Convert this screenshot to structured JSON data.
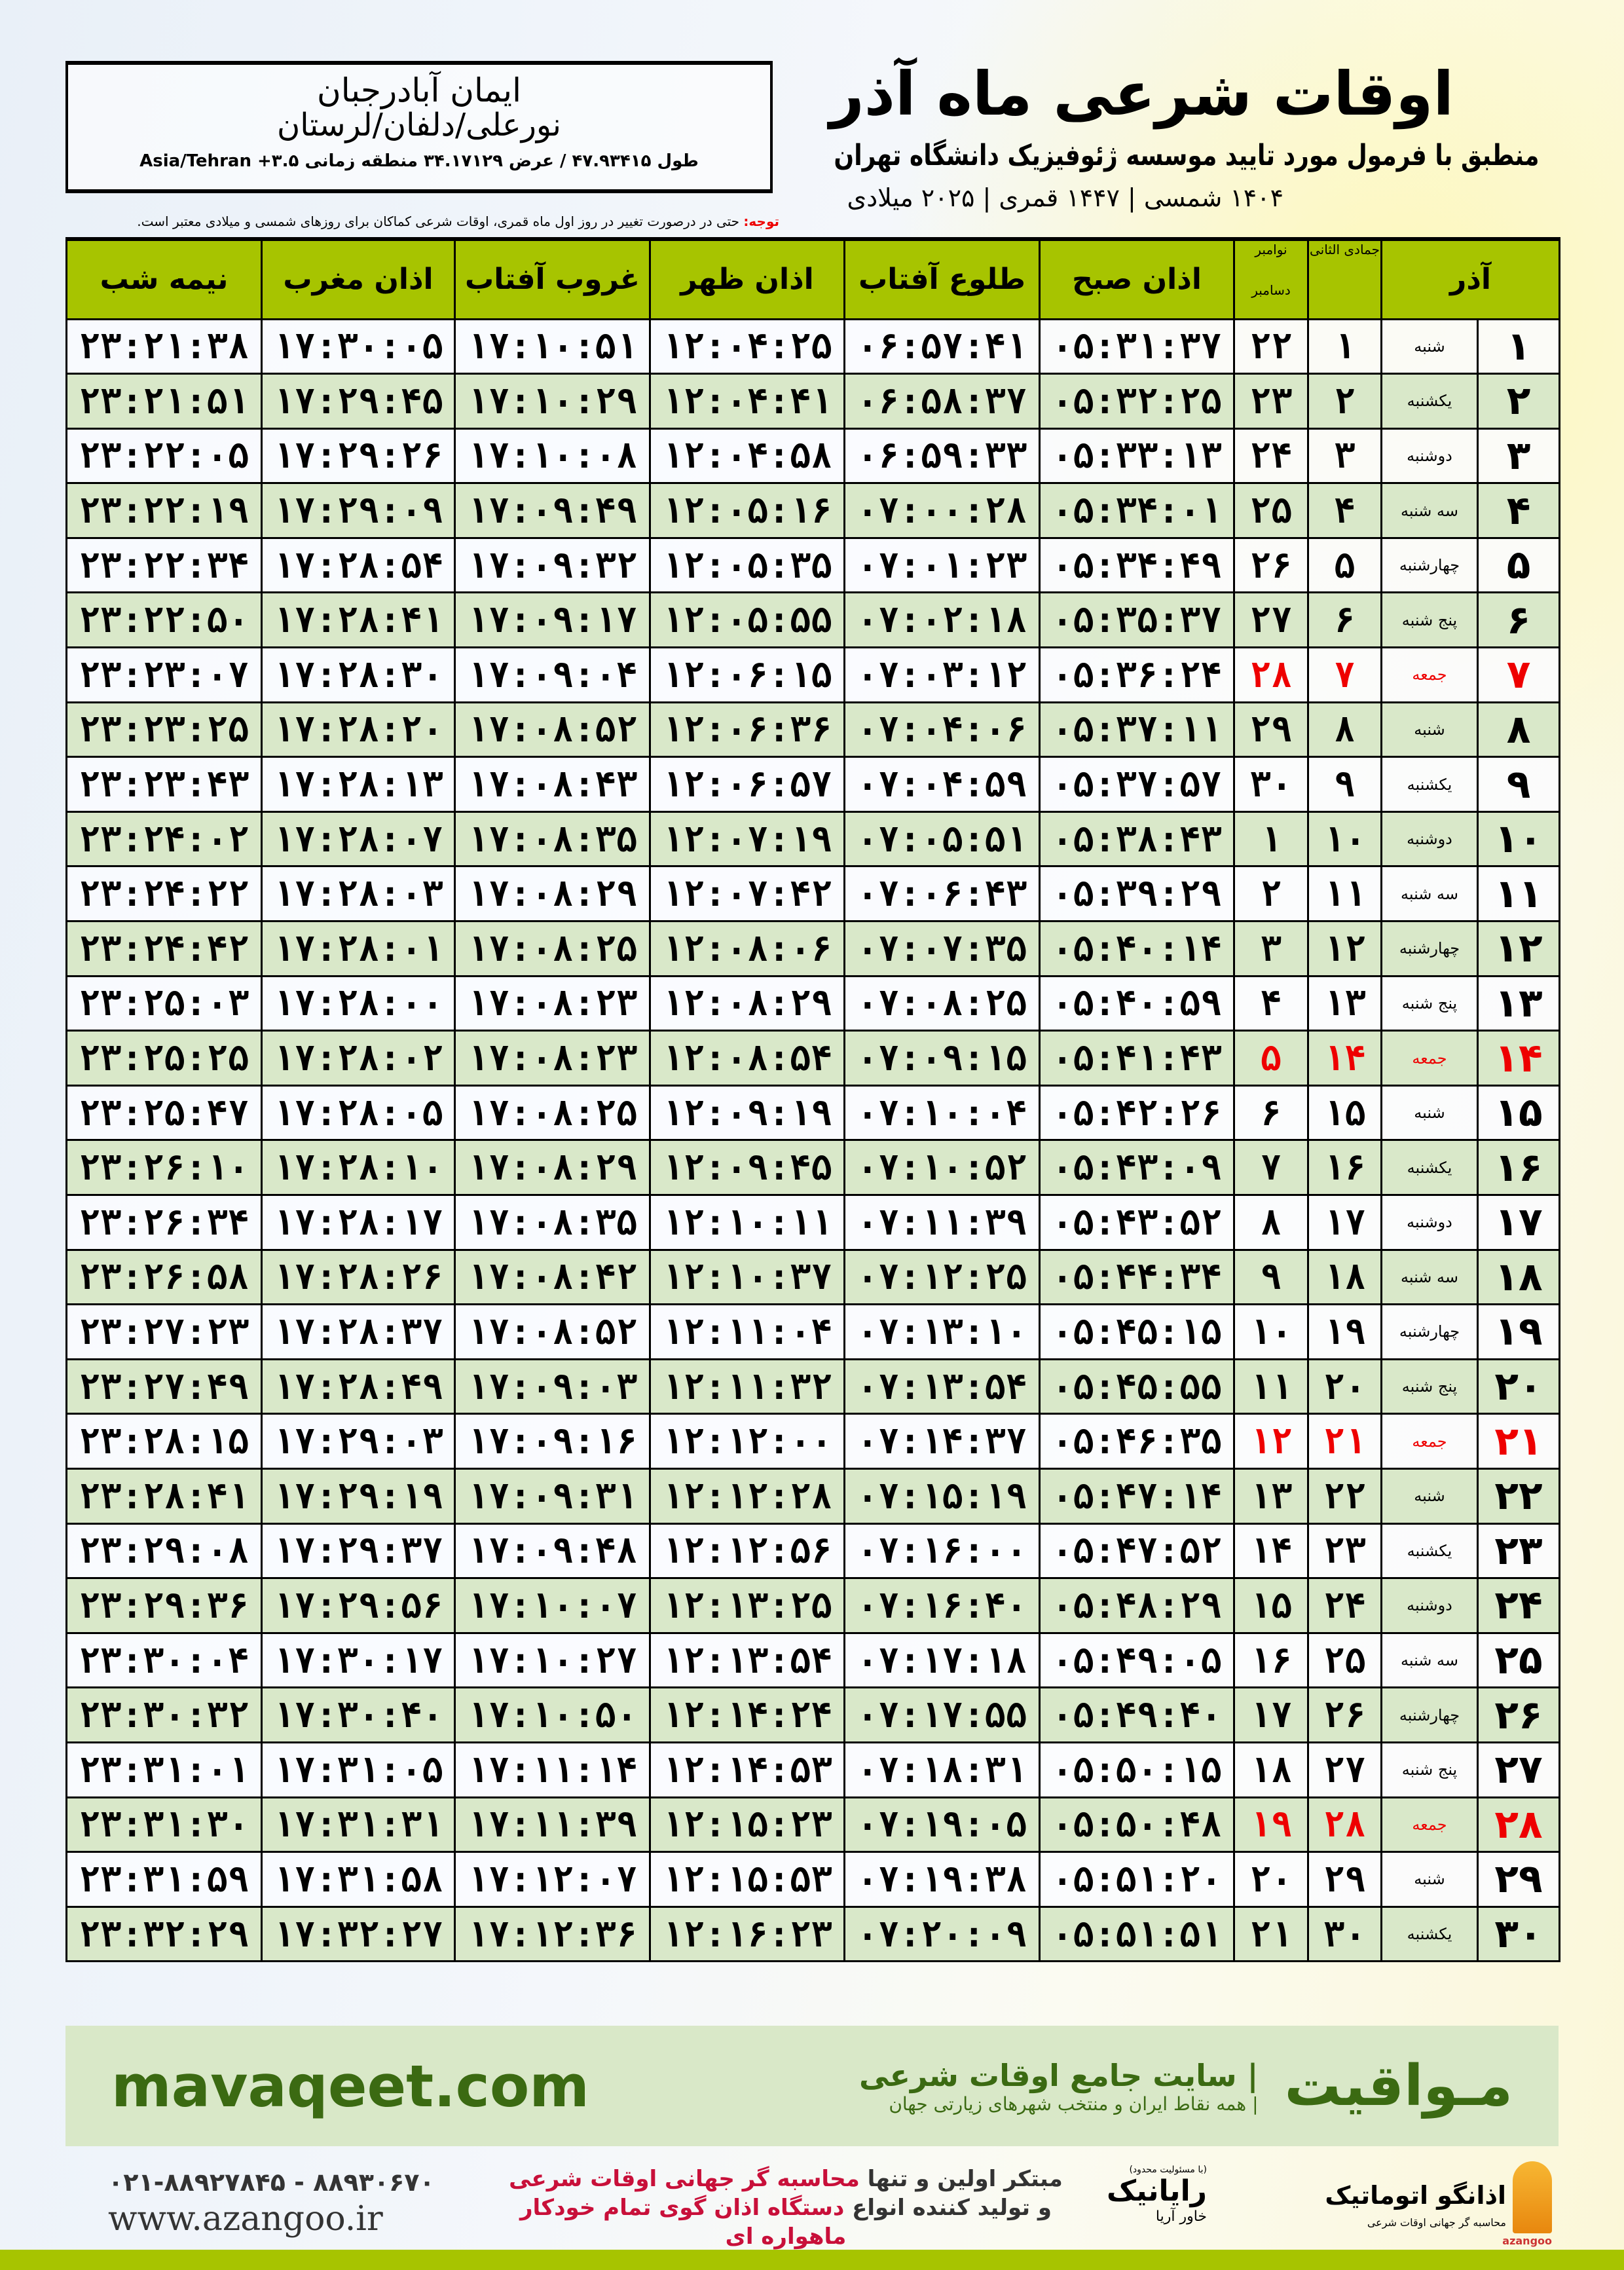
{
  "header": {
    "title": "اوقات شرعی ماه آذر",
    "subtitle": "منطبق با فرمول مورد تایید موسسه ژئوفیزیک دانشگاه تهران",
    "dates": "۱۴۰۴ شمسی | ۱۴۴۷ قمری | ۲۰۲۵ میلادی"
  },
  "location": {
    "name": "ایمان آبادرجبان",
    "region": "نورعلی/دلفان/لرستان",
    "coords": "طول ۴۷.۹۳۴۱۵ / عرض ۳۴.۱۷۱۲۹ منطقه زمانی ۳.۵+ Asia/Tehran"
  },
  "note": {
    "label": "توجه:",
    "text": " حتی در درصورت تغییر در روز اول ماه قمری، اوقات شرعی کماکان برای روزهای شمسی و میلادی معتبر است."
  },
  "columns": {
    "month": "آذر",
    "hijri": "جمادی الثانی",
    "gregorian_top": "نوامبر",
    "gregorian_bottom": "دسامبر",
    "fajr": "اذان صبح",
    "sunrise": "طلوع آفتاب",
    "dhuhr": "اذان ظهر",
    "sunset": "غروب آفتاب",
    "maghrib": "اذان مغرب",
    "midnight": "نیمه شب"
  },
  "colors": {
    "header_green": "#a7c400",
    "row_green": "#d9e8c9",
    "friday_red": "#e00000",
    "brand_green": "#3b6a12"
  },
  "rows": [
    [
      "۱",
      "شنبه",
      "۱",
      "۲۲",
      "۰۵:۳۱:۳۷",
      "۰۶:۵۷:۴۱",
      "۱۲:۰۴:۲۵",
      "۱۷:۱۰:۵۱",
      "۱۷:۳۰:۰۵",
      "۲۳:۲۱:۳۸"
    ],
    [
      "۲",
      "یکشنبه",
      "۲",
      "۲۳",
      "۰۵:۳۲:۲۵",
      "۰۶:۵۸:۳۷",
      "۱۲:۰۴:۴۱",
      "۱۷:۱۰:۲۹",
      "۱۷:۲۹:۴۵",
      "۲۳:۲۱:۵۱"
    ],
    [
      "۳",
      "دوشنبه",
      "۳",
      "۲۴",
      "۰۵:۳۳:۱۳",
      "۰۶:۵۹:۳۳",
      "۱۲:۰۴:۵۸",
      "۱۷:۱۰:۰۸",
      "۱۷:۲۹:۲۶",
      "۲۳:۲۲:۰۵"
    ],
    [
      "۴",
      "سه شنبه",
      "۴",
      "۲۵",
      "۰۵:۳۴:۰۱",
      "۰۷:۰۰:۲۸",
      "۱۲:۰۵:۱۶",
      "۱۷:۰۹:۴۹",
      "۱۷:۲۹:۰۹",
      "۲۳:۲۲:۱۹"
    ],
    [
      "۵",
      "چهارشنبه",
      "۵",
      "۲۶",
      "۰۵:۳۴:۴۹",
      "۰۷:۰۱:۲۳",
      "۱۲:۰۵:۳۵",
      "۱۷:۰۹:۳۲",
      "۱۷:۲۸:۵۴",
      "۲۳:۲۲:۳۴"
    ],
    [
      "۶",
      "پنج شنبه",
      "۶",
      "۲۷",
      "۰۵:۳۵:۳۷",
      "۰۷:۰۲:۱۸",
      "۱۲:۰۵:۵۵",
      "۱۷:۰۹:۱۷",
      "۱۷:۲۸:۴۱",
      "۲۳:۲۲:۵۰"
    ],
    [
      "۷",
      "جمعه",
      "۷",
      "۲۸",
      "۰۵:۳۶:۲۴",
      "۰۷:۰۳:۱۲",
      "۱۲:۰۶:۱۵",
      "۱۷:۰۹:۰۴",
      "۱۷:۲۸:۳۰",
      "۲۳:۲۳:۰۷"
    ],
    [
      "۸",
      "شنبه",
      "۸",
      "۲۹",
      "۰۵:۳۷:۱۱",
      "۰۷:۰۴:۰۶",
      "۱۲:۰۶:۳۶",
      "۱۷:۰۸:۵۲",
      "۱۷:۲۸:۲۰",
      "۲۳:۲۳:۲۵"
    ],
    [
      "۹",
      "یکشنبه",
      "۹",
      "۳۰",
      "۰۵:۳۷:۵۷",
      "۰۷:۰۴:۵۹",
      "۱۲:۰۶:۵۷",
      "۱۷:۰۸:۴۳",
      "۱۷:۲۸:۱۳",
      "۲۳:۲۳:۴۳"
    ],
    [
      "۱۰",
      "دوشنبه",
      "۱۰",
      "۱",
      "۰۵:۳۸:۴۳",
      "۰۷:۰۵:۵۱",
      "۱۲:۰۷:۱۹",
      "۱۷:۰۸:۳۵",
      "۱۷:۲۸:۰۷",
      "۲۳:۲۴:۰۲"
    ],
    [
      "۱۱",
      "سه شنبه",
      "۱۱",
      "۲",
      "۰۵:۳۹:۲۹",
      "۰۷:۰۶:۴۳",
      "۱۲:۰۷:۴۲",
      "۱۷:۰۸:۲۹",
      "۱۷:۲۸:۰۳",
      "۲۳:۲۴:۲۲"
    ],
    [
      "۱۲",
      "چهارشنبه",
      "۱۲",
      "۳",
      "۰۵:۴۰:۱۴",
      "۰۷:۰۷:۳۵",
      "۱۲:۰۸:۰۶",
      "۱۷:۰۸:۲۵",
      "۱۷:۲۸:۰۱",
      "۲۳:۲۴:۴۲"
    ],
    [
      "۱۳",
      "پنج شنبه",
      "۱۳",
      "۴",
      "۰۵:۴۰:۵۹",
      "۰۷:۰۸:۲۵",
      "۱۲:۰۸:۲۹",
      "۱۷:۰۸:۲۳",
      "۱۷:۲۸:۰۰",
      "۲۳:۲۵:۰۳"
    ],
    [
      "۱۴",
      "جمعه",
      "۱۴",
      "۵",
      "۰۵:۴۱:۴۳",
      "۰۷:۰۹:۱۵",
      "۱۲:۰۸:۵۴",
      "۱۷:۰۸:۲۳",
      "۱۷:۲۸:۰۲",
      "۲۳:۲۵:۲۵"
    ],
    [
      "۱۵",
      "شنبه",
      "۱۵",
      "۶",
      "۰۵:۴۲:۲۶",
      "۰۷:۱۰:۰۴",
      "۱۲:۰۹:۱۹",
      "۱۷:۰۸:۲۵",
      "۱۷:۲۸:۰۵",
      "۲۳:۲۵:۴۷"
    ],
    [
      "۱۶",
      "یکشنبه",
      "۱۶",
      "۷",
      "۰۵:۴۳:۰۹",
      "۰۷:۱۰:۵۲",
      "۱۲:۰۹:۴۵",
      "۱۷:۰۸:۲۹",
      "۱۷:۲۸:۱۰",
      "۲۳:۲۶:۱۰"
    ],
    [
      "۱۷",
      "دوشنبه",
      "۱۷",
      "۸",
      "۰۵:۴۳:۵۲",
      "۰۷:۱۱:۳۹",
      "۱۲:۱۰:۱۱",
      "۱۷:۰۸:۳۵",
      "۱۷:۲۸:۱۷",
      "۲۳:۲۶:۳۴"
    ],
    [
      "۱۸",
      "سه شنبه",
      "۱۸",
      "۹",
      "۰۵:۴۴:۳۴",
      "۰۷:۱۲:۲۵",
      "۱۲:۱۰:۳۷",
      "۱۷:۰۸:۴۲",
      "۱۷:۲۸:۲۶",
      "۲۳:۲۶:۵۸"
    ],
    [
      "۱۹",
      "چهارشنبه",
      "۱۹",
      "۱۰",
      "۰۵:۴۵:۱۵",
      "۰۷:۱۳:۱۰",
      "۱۲:۱۱:۰۴",
      "۱۷:۰۸:۵۲",
      "۱۷:۲۸:۳۷",
      "۲۳:۲۷:۲۳"
    ],
    [
      "۲۰",
      "پنج شنبه",
      "۲۰",
      "۱۱",
      "۰۵:۴۵:۵۵",
      "۰۷:۱۳:۵۴",
      "۱۲:۱۱:۳۲",
      "۱۷:۰۹:۰۳",
      "۱۷:۲۸:۴۹",
      "۲۳:۲۷:۴۹"
    ],
    [
      "۲۱",
      "جمعه",
      "۲۱",
      "۱۲",
      "۰۵:۴۶:۳۵",
      "۰۷:۱۴:۳۷",
      "۱۲:۱۲:۰۰",
      "۱۷:۰۹:۱۶",
      "۱۷:۲۹:۰۳",
      "۲۳:۲۸:۱۵"
    ],
    [
      "۲۲",
      "شنبه",
      "۲۲",
      "۱۳",
      "۰۵:۴۷:۱۴",
      "۰۷:۱۵:۱۹",
      "۱۲:۱۲:۲۸",
      "۱۷:۰۹:۳۱",
      "۱۷:۲۹:۱۹",
      "۲۳:۲۸:۴۱"
    ],
    [
      "۲۳",
      "یکشنبه",
      "۲۳",
      "۱۴",
      "۰۵:۴۷:۵۲",
      "۰۷:۱۶:۰۰",
      "۱۲:۱۲:۵۶",
      "۱۷:۰۹:۴۸",
      "۱۷:۲۹:۳۷",
      "۲۳:۲۹:۰۸"
    ],
    [
      "۲۴",
      "دوشنبه",
      "۲۴",
      "۱۵",
      "۰۵:۴۸:۲۹",
      "۰۷:۱۶:۴۰",
      "۱۲:۱۳:۲۵",
      "۱۷:۱۰:۰۷",
      "۱۷:۲۹:۵۶",
      "۲۳:۲۹:۳۶"
    ],
    [
      "۲۵",
      "سه شنبه",
      "۲۵",
      "۱۶",
      "۰۵:۴۹:۰۵",
      "۰۷:۱۷:۱۸",
      "۱۲:۱۳:۵۴",
      "۱۷:۱۰:۲۷",
      "۱۷:۳۰:۱۷",
      "۲۳:۳۰:۰۴"
    ],
    [
      "۲۶",
      "چهارشنبه",
      "۲۶",
      "۱۷",
      "۰۵:۴۹:۴۰",
      "۰۷:۱۷:۵۵",
      "۱۲:۱۴:۲۴",
      "۱۷:۱۰:۵۰",
      "۱۷:۳۰:۴۰",
      "۲۳:۳۰:۳۲"
    ],
    [
      "۲۷",
      "پنج شنبه",
      "۲۷",
      "۱۸",
      "۰۵:۵۰:۱۵",
      "۰۷:۱۸:۳۱",
      "۱۲:۱۴:۵۳",
      "۱۷:۱۱:۱۴",
      "۱۷:۳۱:۰۵",
      "۲۳:۳۱:۰۱"
    ],
    [
      "۲۸",
      "جمعه",
      "۲۸",
      "۱۹",
      "۰۵:۵۰:۴۸",
      "۰۷:۱۹:۰۵",
      "۱۲:۱۵:۲۳",
      "۱۷:۱۱:۳۹",
      "۱۷:۳۱:۳۱",
      "۲۳:۳۱:۳۰"
    ],
    [
      "۲۹",
      "شنبه",
      "۲۹",
      "۲۰",
      "۰۵:۵۱:۲۰",
      "۰۷:۱۹:۳۸",
      "۱۲:۱۵:۵۳",
      "۱۷:۱۲:۰۷",
      "۱۷:۳۱:۵۸",
      "۲۳:۳۱:۵۹"
    ],
    [
      "۳۰",
      "یکشنبه",
      "۳۰",
      "۲۱",
      "۰۵:۵۱:۵۱",
      "۰۷:۲۰:۰۹",
      "۱۲:۱۶:۲۳",
      "۱۷:۱۲:۳۶",
      "۱۷:۳۲:۲۷",
      "۲۳:۳۲:۲۹"
    ]
  ],
  "friday_label": "جمعه",
  "footer": {
    "brand": "مـواقیت",
    "slogan": "| سایت جامع اوقات شرعی",
    "slogan2": "| همه نقاط ایران و منتخب شهرهای زیارتی جهان",
    "site": "mavaqeet.com",
    "phone": "۰۲۱-۸۸۹۲۷۸۴۵ - ۸۸۹۳۰۶۷۰",
    "www": "www.azangoo.ir",
    "promo1a": "مبتکر اولین و تنها ",
    "promo1b": "محاسبه گر جهانی اوقات شرعی",
    "promo2a": "و تولید کننده انواع ",
    "promo2b": "دستگاه اذان گوی تمام خودکار ماهواره ای",
    "rayanik": "رایانیک",
    "rayanik_small": "(با مسئولیت محدود)",
    "rayanik_side": "خاور آریا",
    "azangoo": "اذانگو اتوماتیک",
    "azangoo_sub": "محاسبه گر جهانی اوقات شرعی",
    "azangoo_en": "azangoo"
  }
}
